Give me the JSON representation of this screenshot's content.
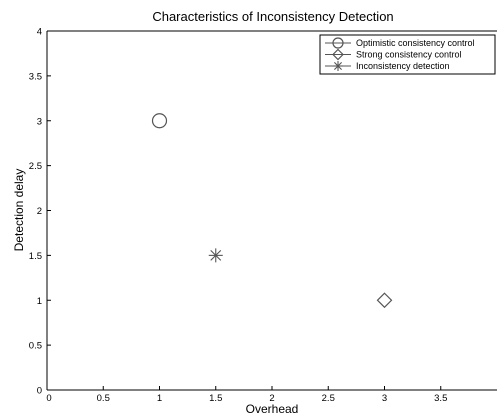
{
  "chart_data": {
    "type": "scatter",
    "title": "Characteristics of Inconsistency Detection",
    "xlabel": "Overhead",
    "ylabel": "Detection delay",
    "xlim": [
      0,
      4
    ],
    "ylim": [
      0,
      4
    ],
    "x_ticks": [
      "0",
      "0.5",
      "1",
      "1.5",
      "2",
      "2.5",
      "3",
      "3.5"
    ],
    "y_ticks": [
      "0",
      "0.5",
      "1",
      "1.5",
      "2",
      "2.5",
      "3",
      "3.5",
      "4"
    ],
    "grid": false,
    "legend_position": "top-right",
    "series": [
      {
        "name": "Optimistic consistency control",
        "marker": "circle",
        "x": [
          1.0
        ],
        "y": [
          3.0
        ]
      },
      {
        "name": "Strong consistency control",
        "marker": "diamond",
        "x": [
          3.0
        ],
        "y": [
          1.0
        ]
      },
      {
        "name": "Inconsistency detection",
        "marker": "asterisk",
        "x": [
          1.5
        ],
        "y": [
          1.5
        ]
      }
    ],
    "colors": {
      "marker": "#555555",
      "axis": "#000000"
    }
  }
}
